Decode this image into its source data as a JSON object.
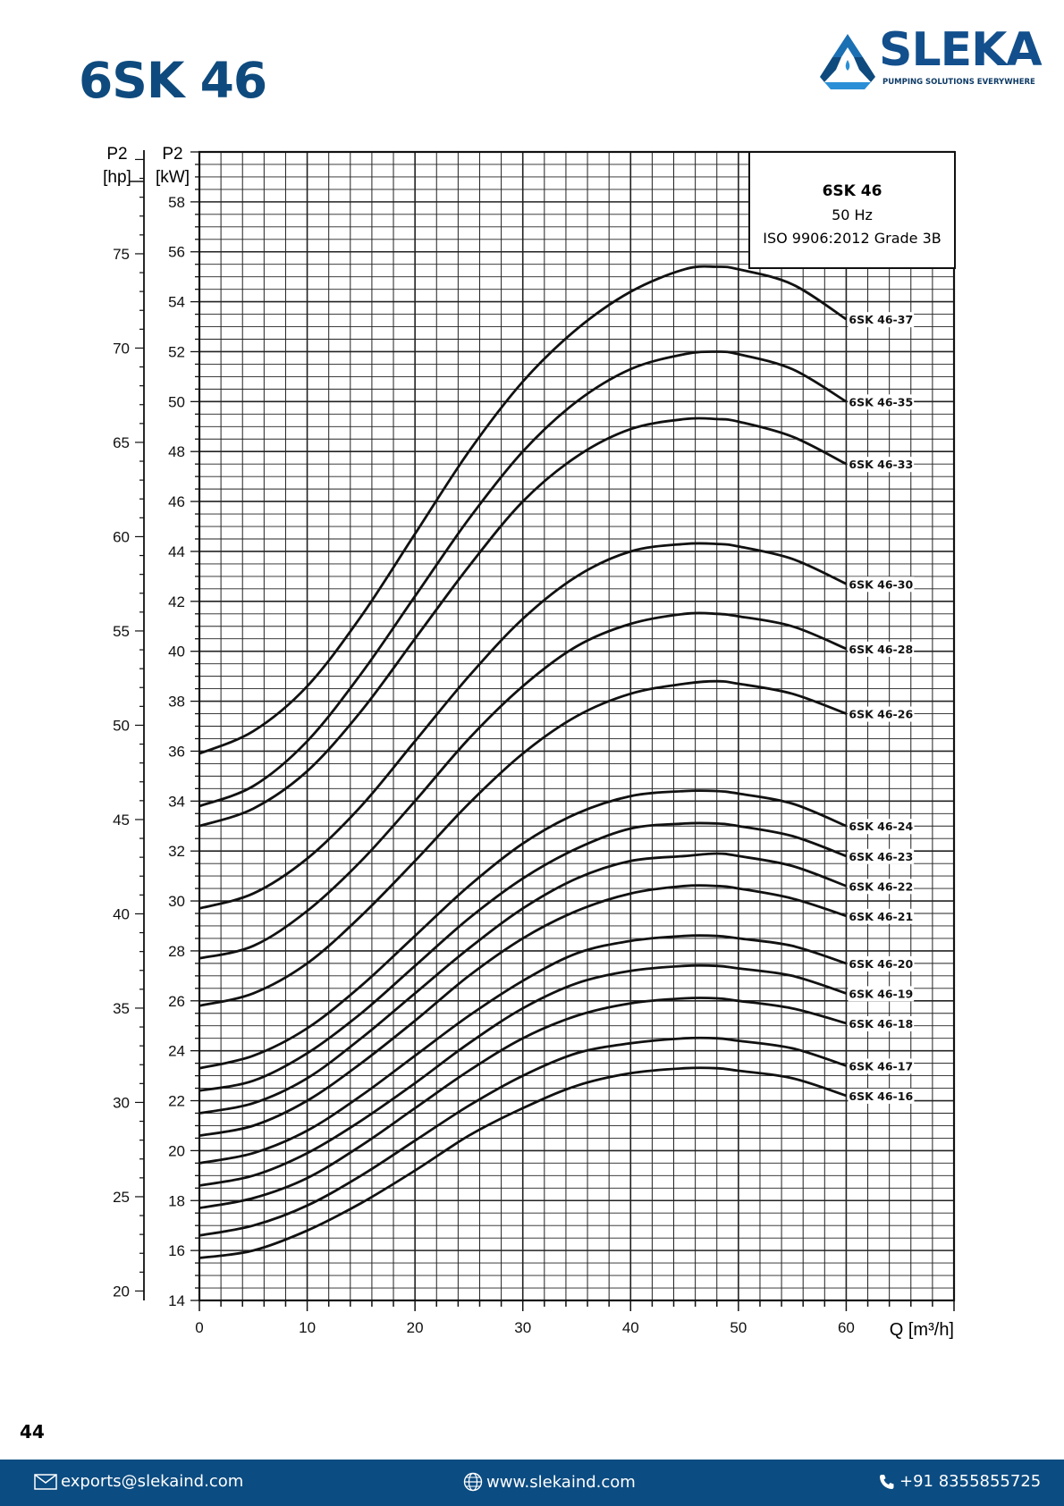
{
  "page": {
    "title": "6SK 46",
    "number": "44"
  },
  "logo": {
    "name": "SLEKA",
    "tagline": "PUMPING SOLUTIONS EVERYWHERE"
  },
  "footer": {
    "email": "exports@slekaind.com",
    "website": "www.slekaind.com",
    "phone": "+91 8355855725"
  },
  "colors": {
    "brand": "#0e4a7d",
    "footer_bg": "#0b4c82",
    "curve": "#111111"
  },
  "chart_data": {
    "type": "line",
    "title": "",
    "legend_box": [
      "6SK 46",
      "50 Hz",
      "ISO 9906:2012 Grade 3B"
    ],
    "xlabel": "Q [m³/h]",
    "ylabel_kw": [
      "P2",
      "[kW]"
    ],
    "ylabel_hp": [
      "P2",
      "[hp]"
    ],
    "xlim": [
      0,
      70
    ],
    "ylim": [
      14,
      60
    ],
    "hp_lim": [
      19.5,
      80.4
    ],
    "x_ticks": [
      0,
      10,
      20,
      30,
      40,
      50,
      60
    ],
    "kw_ticks": [
      14,
      16,
      18,
      20,
      22,
      24,
      26,
      28,
      30,
      32,
      34,
      36,
      38,
      40,
      42,
      44,
      46,
      48,
      50,
      52,
      54,
      56,
      58
    ],
    "hp_ticks": [
      20,
      25,
      30,
      35,
      40,
      45,
      50,
      55,
      60,
      65,
      70,
      75
    ],
    "grid": true,
    "x": [
      0,
      5,
      10,
      15,
      20,
      25,
      30,
      35,
      40,
      45,
      48,
      50,
      55,
      60
    ],
    "series": [
      {
        "name": "6SK 46-37",
        "values": [
          35.9,
          36.8,
          38.6,
          41.4,
          44.7,
          48.0,
          50.8,
          52.9,
          54.4,
          55.3,
          55.4,
          55.3,
          54.7,
          53.3
        ]
      },
      {
        "name": "6SK 46-35",
        "values": [
          33.8,
          34.6,
          36.4,
          39.1,
          42.2,
          45.3,
          48.0,
          50.0,
          51.3,
          51.9,
          52.0,
          51.9,
          51.3,
          50.0
        ]
      },
      {
        "name": "6SK 46-33",
        "values": [
          33.0,
          33.7,
          35.2,
          37.6,
          40.5,
          43.4,
          46.0,
          47.8,
          48.9,
          49.3,
          49.3,
          49.2,
          48.6,
          47.5
        ]
      },
      {
        "name": "6SK 46-30",
        "values": [
          29.7,
          30.3,
          31.7,
          33.8,
          36.4,
          39.0,
          41.3,
          43.0,
          44.0,
          44.3,
          44.3,
          44.2,
          43.7,
          42.7
        ]
      },
      {
        "name": "6SK 46-28",
        "values": [
          27.7,
          28.2,
          29.6,
          31.6,
          34.0,
          36.5,
          38.6,
          40.2,
          41.1,
          41.5,
          41.5,
          41.4,
          41.0,
          40.1
        ]
      },
      {
        "name": "6SK 46-26",
        "values": [
          25.8,
          26.3,
          27.5,
          29.4,
          31.6,
          33.9,
          35.9,
          37.4,
          38.3,
          38.7,
          38.8,
          38.7,
          38.3,
          37.5
        ]
      },
      {
        "name": "6SK 46-24",
        "values": [
          23.3,
          23.8,
          24.9,
          26.6,
          28.6,
          30.6,
          32.3,
          33.5,
          34.2,
          34.4,
          34.4,
          34.3,
          33.9,
          33.0
        ]
      },
      {
        "name": "6SK 46-23",
        "values": [
          22.4,
          22.8,
          23.9,
          25.5,
          27.4,
          29.3,
          30.9,
          32.1,
          32.9,
          33.1,
          33.1,
          33.0,
          32.6,
          31.8
        ]
      },
      {
        "name": "6SK 46-22",
        "values": [
          21.5,
          21.9,
          22.9,
          24.5,
          26.3,
          28.1,
          29.7,
          30.9,
          31.6,
          31.8,
          31.9,
          31.8,
          31.4,
          30.6
        ]
      },
      {
        "name": "6SK 46-21",
        "values": [
          20.6,
          21.0,
          22.0,
          23.5,
          25.2,
          27.0,
          28.5,
          29.6,
          30.3,
          30.6,
          30.6,
          30.5,
          30.1,
          29.4
        ]
      },
      {
        "name": "6SK 46-20",
        "values": [
          19.5,
          19.9,
          20.8,
          22.2,
          23.8,
          25.4,
          26.8,
          27.9,
          28.4,
          28.6,
          28.6,
          28.5,
          28.2,
          27.5
        ]
      },
      {
        "name": "6SK 46-19",
        "values": [
          18.6,
          19.0,
          19.9,
          21.2,
          22.7,
          24.3,
          25.7,
          26.7,
          27.2,
          27.4,
          27.4,
          27.3,
          27.0,
          26.3
        ]
      },
      {
        "name": "6SK 46-18",
        "values": [
          17.7,
          18.1,
          18.9,
          20.2,
          21.7,
          23.2,
          24.5,
          25.4,
          25.9,
          26.1,
          26.1,
          26.0,
          25.7,
          25.1
        ]
      },
      {
        "name": "6SK 46-17",
        "values": [
          16.6,
          17.0,
          17.8,
          19.0,
          20.4,
          21.8,
          23.0,
          23.9,
          24.3,
          24.5,
          24.5,
          24.4,
          24.1,
          23.4
        ]
      },
      {
        "name": "6SK 46-16",
        "values": [
          15.7,
          16.0,
          16.8,
          17.9,
          19.2,
          20.6,
          21.7,
          22.6,
          23.1,
          23.3,
          23.3,
          23.2,
          22.9,
          22.2
        ]
      }
    ]
  }
}
